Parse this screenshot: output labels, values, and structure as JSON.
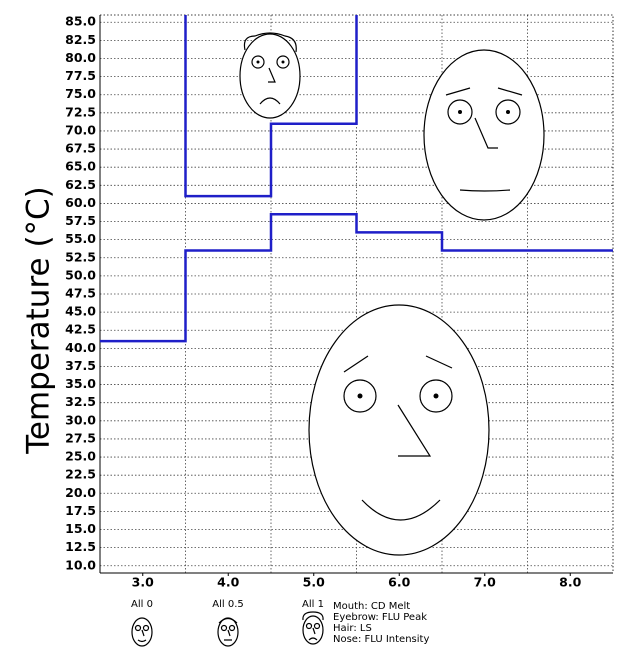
{
  "chart_data": {
    "type": "step",
    "y_label": "Temperature (°C)",
    "x": [
      3,
      4,
      5,
      6,
      7,
      8
    ],
    "xticks": [
      {
        "value": 3,
        "label": "3.0"
      },
      {
        "value": 4,
        "label": "4.0"
      },
      {
        "value": 5,
        "label": "5.0"
      },
      {
        "value": 6,
        "label": "6.0"
      },
      {
        "value": 7,
        "label": "7.0"
      },
      {
        "value": 8,
        "label": "8.0"
      }
    ],
    "x_grid": [
      3.5,
      4.5,
      5.5,
      6.5,
      7.5
    ],
    "xlim": [
      2.5,
      8.5
    ],
    "ylim": [
      9,
      86
    ],
    "yticks": [
      {
        "value": 10,
        "label": "10.0"
      },
      {
        "value": 12.5,
        "label": "12.5"
      },
      {
        "value": 15,
        "label": "15.0"
      },
      {
        "value": 17.5,
        "label": "17.5"
      },
      {
        "value": 20,
        "label": "20.0"
      },
      {
        "value": 22.5,
        "label": "22.5"
      },
      {
        "value": 25,
        "label": "25.0"
      },
      {
        "value": 27.5,
        "label": "27.5"
      },
      {
        "value": 30,
        "label": "30.0"
      },
      {
        "value": 32.5,
        "label": "32.5"
      },
      {
        "value": 35,
        "label": "35.0"
      },
      {
        "value": 37.5,
        "label": "37.5"
      },
      {
        "value": 40,
        "label": "40.0"
      },
      {
        "value": 42.5,
        "label": "42.5"
      },
      {
        "value": 45,
        "label": "45.0"
      },
      {
        "value": 47.5,
        "label": "47.5"
      },
      {
        "value": 50,
        "label": "50.0"
      },
      {
        "value": 52.5,
        "label": "52.5"
      },
      {
        "value": 55,
        "label": "55.0"
      },
      {
        "value": 57.5,
        "label": "57.5"
      },
      {
        "value": 60,
        "label": "60.0"
      },
      {
        "value": 62.5,
        "label": "62.5"
      },
      {
        "value": 65,
        "label": "65.0"
      },
      {
        "value": 67.5,
        "label": "67.5"
      },
      {
        "value": 70,
        "label": "70.0"
      },
      {
        "value": 72.5,
        "label": "72.5"
      },
      {
        "value": 75,
        "label": "75.0"
      },
      {
        "value": 77.5,
        "label": "77.5"
      },
      {
        "value": 80,
        "label": "80.0"
      },
      {
        "value": 82.5,
        "label": "82.5"
      },
      {
        "value": 85,
        "label": "85.0"
      }
    ],
    "grid": true,
    "series": [
      {
        "color": "#1f1fc8",
        "values": [
          41,
          53.5,
          58.5,
          56,
          53.5,
          53.5
        ]
      },
      {
        "color": "#1f1fc8",
        "values": [
          null,
          61,
          71,
          null,
          null,
          null
        ]
      }
    ],
    "face_legend": {
      "labels": [
        "All 0",
        "All 0.5",
        "All 1"
      ],
      "features": [
        "Mouth: CD Melt",
        "Eyebrow: FLU Peak",
        "Hair: LS",
        "Nose: FLU Intensity"
      ]
    }
  }
}
